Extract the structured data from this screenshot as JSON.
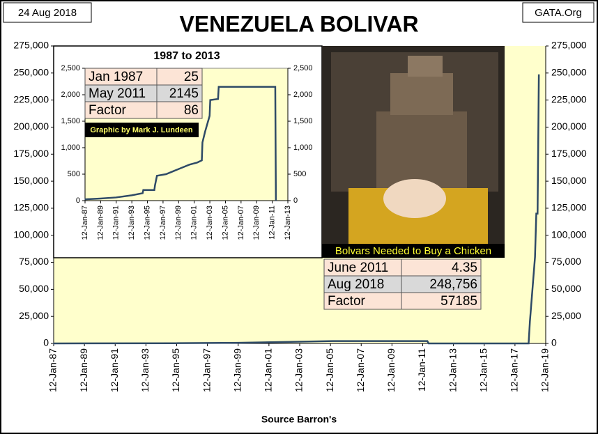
{
  "date_stamp": "24 Aug 2018",
  "source": "GATA.Org",
  "chart_data": [
    {
      "type": "line",
      "title": "VENEZUELA BOLIVAR",
      "x_label": "Source Barron's",
      "xlim": [
        "1987-01-12",
        "2019-01-12"
      ],
      "xticks": [
        {
          "value": "1987-01-12",
          "label": "12-Jan-87"
        },
        {
          "value": "1989-01-12",
          "label": "12-Jan-89"
        },
        {
          "value": "1991-01-12",
          "label": "12-Jan-91"
        },
        {
          "value": "1993-01-12",
          "label": "12-Jan-93"
        },
        {
          "value": "1995-01-12",
          "label": "12-Jan-95"
        },
        {
          "value": "1997-01-12",
          "label": "12-Jan-97"
        },
        {
          "value": "1999-01-12",
          "label": "12-Jan-99"
        },
        {
          "value": "2001-01-12",
          "label": "12-Jan-01"
        },
        {
          "value": "2003-01-12",
          "label": "12-Jan-03"
        },
        {
          "value": "2005-01-12",
          "label": "12-Jan-05"
        },
        {
          "value": "2007-01-12",
          "label": "12-Jan-07"
        },
        {
          "value": "2009-01-12",
          "label": "12-Jan-09"
        },
        {
          "value": "2011-01-12",
          "label": "12-Jan-11"
        },
        {
          "value": "2013-01-12",
          "label": "12-Jan-13"
        },
        {
          "value": "2015-01-12",
          "label": "12-Jan-15"
        },
        {
          "value": "2017-01-12",
          "label": "12-Jan-17"
        },
        {
          "value": "2019-01-12",
          "label": "12-Jan-19"
        }
      ],
      "ylim": [
        0,
        275000
      ],
      "yticks": [
        0,
        {
          "value": 25000,
          "label": "25,000"
        },
        {
          "value": 50000,
          "label": "50,000"
        },
        {
          "value": 75000,
          "label": "75,000"
        },
        {
          "value": 100000,
          "label": "100,000"
        },
        {
          "value": 125000,
          "label": "125,000"
        },
        {
          "value": 150000,
          "label": "150,000"
        },
        {
          "value": 175000,
          "label": "175,000"
        },
        {
          "value": 200000,
          "label": "200,000"
        },
        {
          "value": 225000,
          "label": "225,000"
        },
        {
          "value": 250000,
          "label": "250,000"
        },
        {
          "value": 275000,
          "label": "275,000"
        }
      ],
      "y2lim": [
        0,
        275000
      ],
      "y2ticks": [
        0,
        {
          "value": 25000,
          "label": "25,000"
        },
        {
          "value": 50000,
          "label": "50,000"
        },
        {
          "value": 75000,
          "label": "75,000"
        },
        {
          "value": 100000,
          "label": "100,000"
        },
        {
          "value": 125000,
          "label": "125,000"
        },
        {
          "value": 150000,
          "label": "150,000"
        },
        {
          "value": 175000,
          "label": "175,000"
        },
        {
          "value": 200000,
          "label": "200,000"
        },
        {
          "value": 225000,
          "label": "225,000"
        },
        {
          "value": 250000,
          "label": "250,000"
        },
        {
          "value": 275000,
          "label": "275,000"
        }
      ],
      "x": [
        "1987-01",
        "1995-01",
        "1999-01",
        "2003-01",
        "2005-03",
        "2011-05",
        "2011-06",
        "2017-12",
        "2018-01",
        "2018-03",
        "2018-05",
        "2018-06",
        "2018-07",
        "2018-08"
      ],
      "series": [
        {
          "color": "#2e4a66",
          "values": [
            25,
            200,
            600,
            1600,
            2150,
            2145,
            0,
            0,
            20000,
            50000,
            80000,
            120000,
            120000,
            248756
          ]
        }
      ]
    },
    {
      "type": "line",
      "title": "1987 to 2013",
      "note": "Graphic by Mark J. Lundeen",
      "table": [
        [
          "Jan 1987",
          25
        ],
        [
          "May 2011",
          2145
        ],
        [
          "Factor",
          86
        ]
      ],
      "xlim": [
        "1987-01-12",
        "2013-01-12"
      ],
      "xticks": [
        {
          "value": "1987-01-12",
          "label": "12-Jan-87"
        },
        {
          "value": "1989-01-12",
          "label": "12-Jan-89"
        },
        {
          "value": "1991-01-12",
          "label": "12-Jan-91"
        },
        {
          "value": "1993-01-12",
          "label": "12-Jan-93"
        },
        {
          "value": "1995-01-12",
          "label": "12-Jan-95"
        },
        {
          "value": "1997-01-12",
          "label": "12-Jan-97"
        },
        {
          "value": "1999-01-12",
          "label": "12-Jan-99"
        },
        {
          "value": "2001-01-12",
          "label": "12-Jan-01"
        },
        {
          "value": "2003-01-12",
          "label": "12-Jan-03"
        },
        {
          "value": "2005-01-12",
          "label": "12-Jan-05"
        },
        {
          "value": "2007-01-12",
          "label": "12-Jan-07"
        },
        {
          "value": "2009-01-12",
          "label": "12-Jan-09"
        },
        {
          "value": "2011-01-12",
          "label": "12-Jan-11"
        },
        {
          "value": "2013-01-12",
          "label": "12-Jan-13"
        }
      ],
      "ylim": [
        0,
        2500
      ],
      "yticks": [
        0,
        500,
        {
          "value": 1000,
          "label": "1,000"
        },
        {
          "value": 1500,
          "label": "1,500"
        },
        {
          "value": 2000,
          "label": "2,000"
        },
        {
          "value": 2500,
          "label": "2,500"
        }
      ],
      "y2lim": [
        0,
        2500
      ],
      "y2ticks": [
        0,
        500,
        {
          "value": 1000,
          "label": "1,000"
        },
        {
          "value": 1500,
          "label": "1,500"
        },
        {
          "value": 2000,
          "label": "2,000"
        },
        {
          "value": 2500,
          "label": "2,500"
        }
      ],
      "x": [
        "1987-01",
        "1989-01",
        "1991-01",
        "1993-01",
        "1994-06",
        "1994-07",
        "1995-12",
        "1996-01",
        "1996-04",
        "1997-06",
        "1998-06",
        "1999-06",
        "2000-06",
        "2001-06",
        "2002-01",
        "2002-02",
        "2002-06",
        "2003-01",
        "2003-02",
        "2004-02",
        "2004-03",
        "2011-06",
        "2011-07"
      ],
      "series": [
        {
          "color": "#2e4a66",
          "values": [
            25,
            40,
            60,
            100,
            140,
            200,
            200,
            290,
            470,
            500,
            560,
            620,
            680,
            720,
            760,
            1100,
            1300,
            1600,
            1900,
            1920,
            2150,
            2150,
            0
          ]
        }
      ]
    }
  ],
  "photo": {
    "caption": "Bolvars Needed to Buy a Chicken",
    "table": [
      [
        "June 2011",
        4.35
      ],
      [
        "Aug 2018",
        "248,756"
      ],
      [
        "Factor",
        57185
      ]
    ]
  }
}
